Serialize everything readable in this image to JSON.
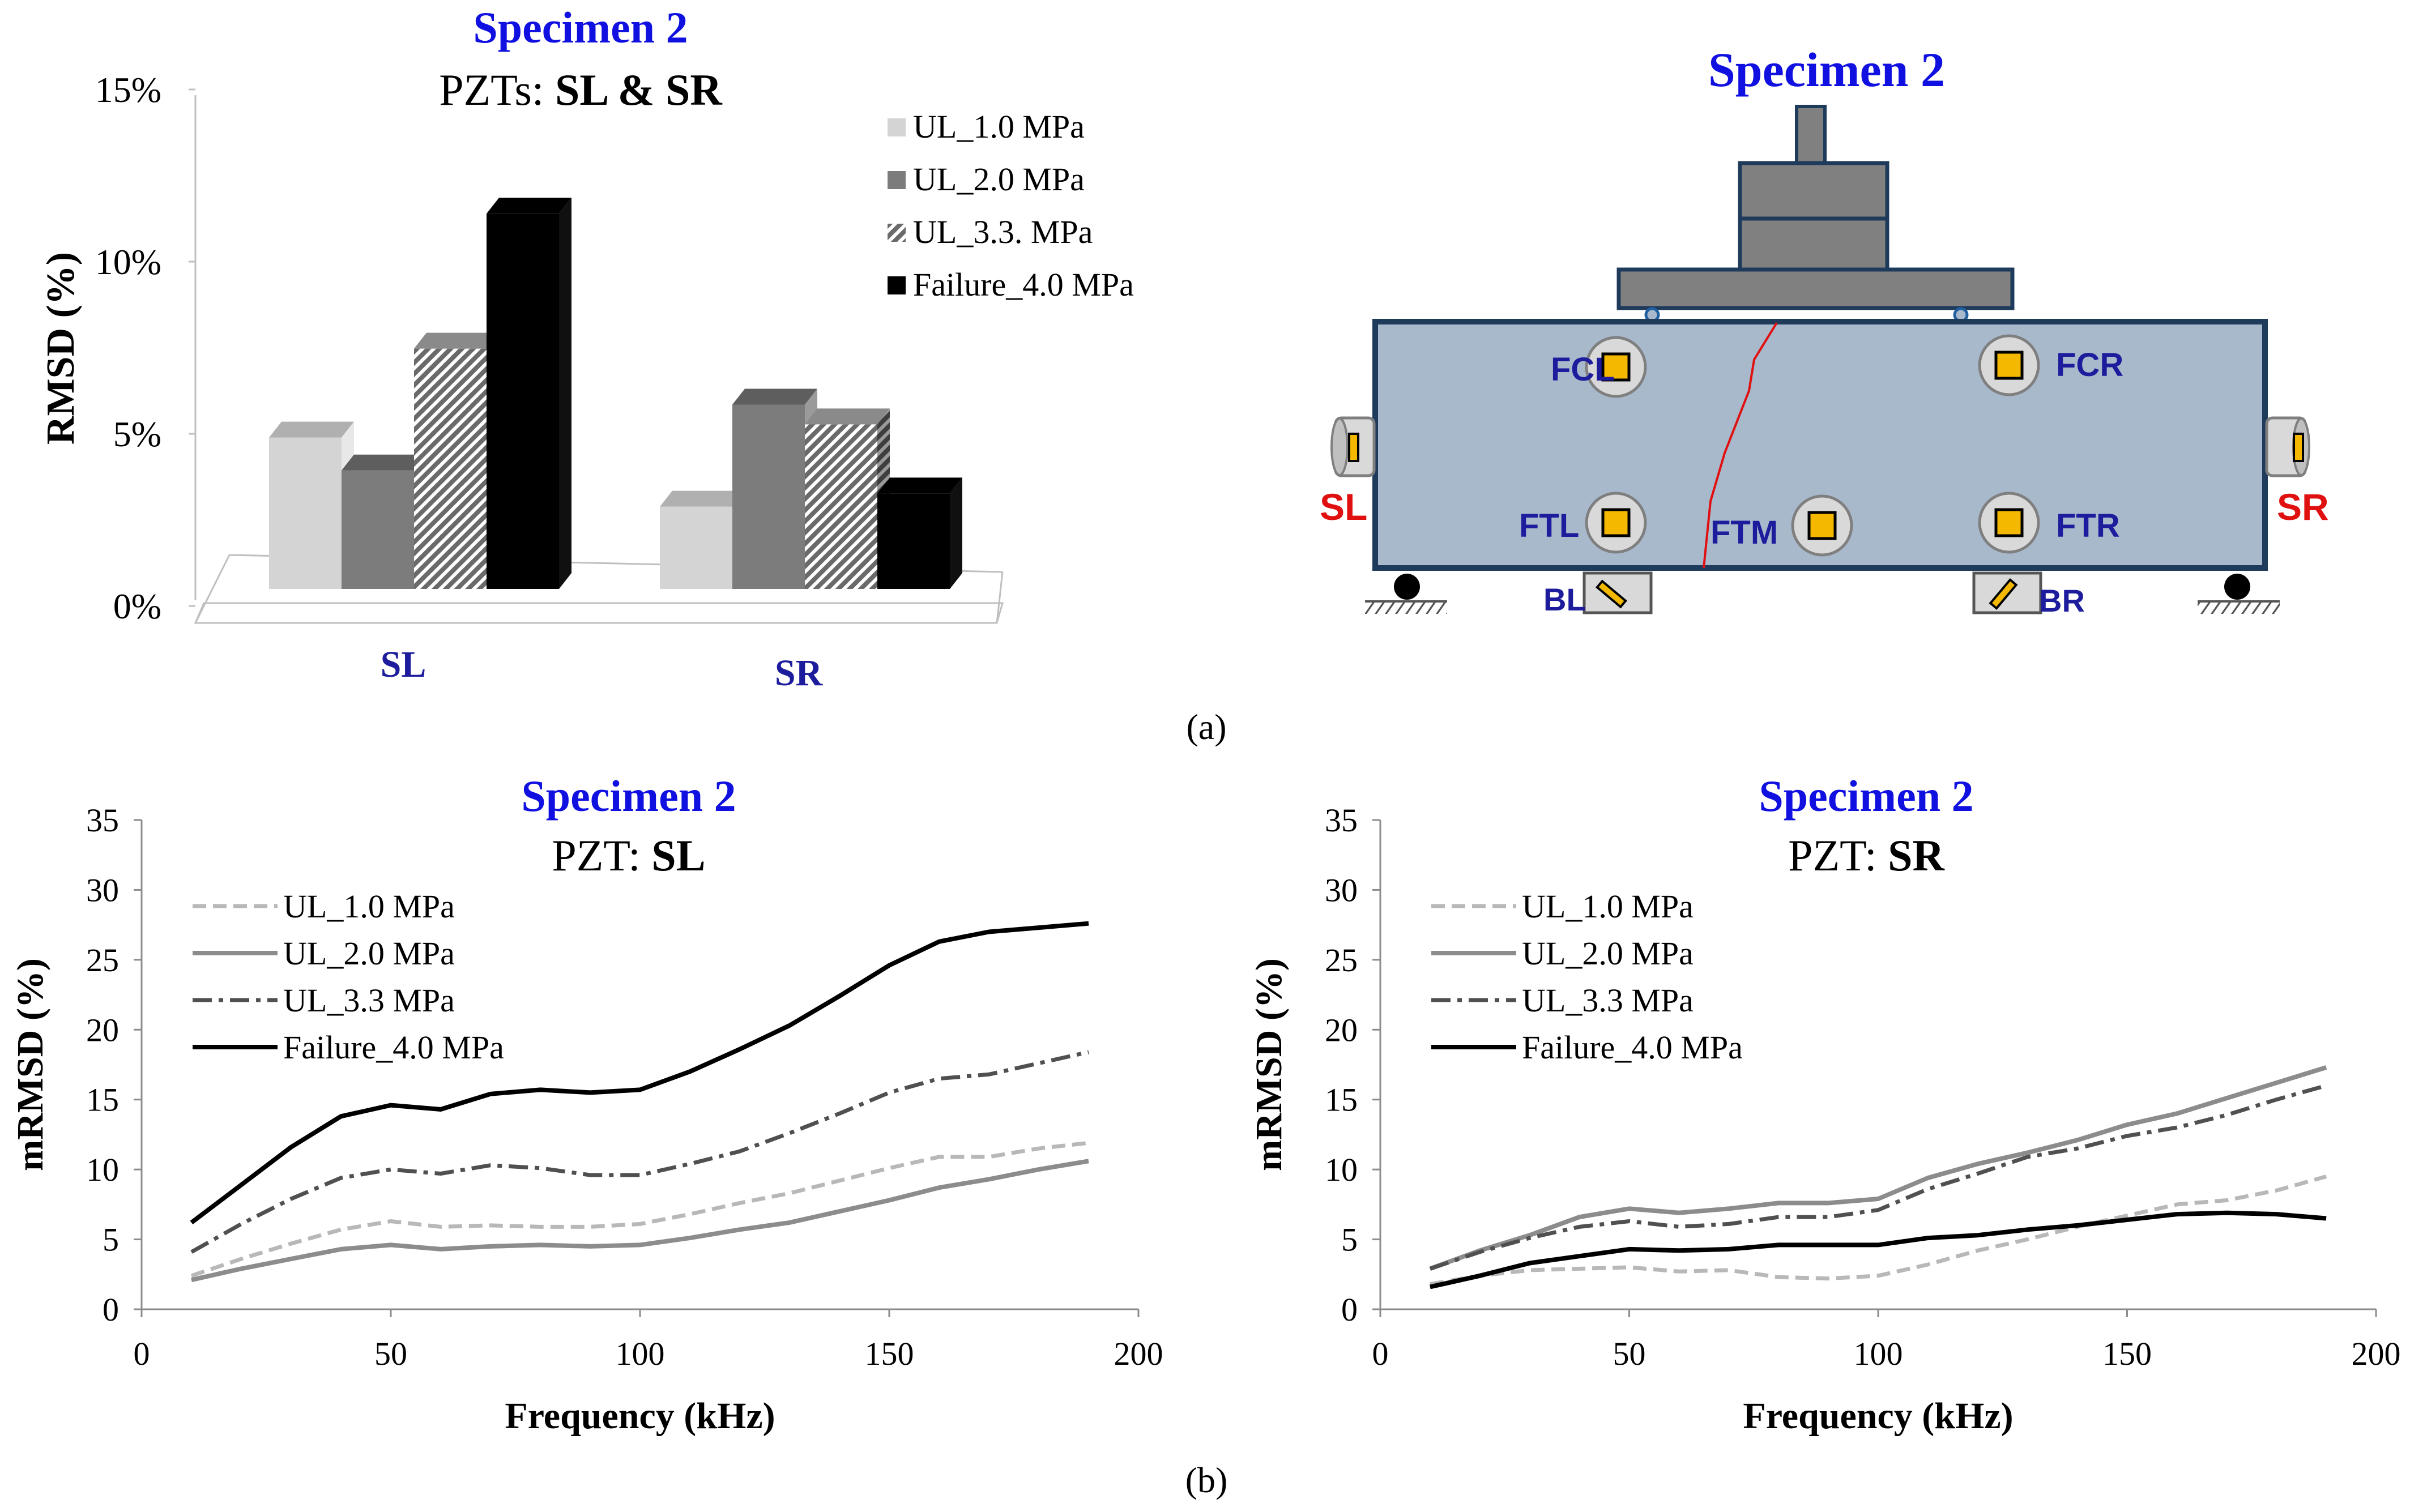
{
  "caption_a": "(a)",
  "caption_b": "(b)",
  "colors": {
    "title_blue": "#1010e0",
    "label_navy": "#1c1c9c",
    "red": "#e01010",
    "beam_fill": "#a9b9cc",
    "beam_stroke": "#1f3b5c",
    "loader_fill": "#808080",
    "pzt_fill": "#f5b800"
  },
  "chart_data": [
    {
      "type": "bar",
      "title": "Specimen 2",
      "subtitle_prefix": "PZTs: ",
      "subtitle_bold": "SL & SR",
      "ylabel": "RMSD (%)",
      "ylim": [
        0,
        15
      ],
      "yticks": [
        "0%",
        "5%",
        "10%",
        "15%"
      ],
      "categories": [
        "SL",
        "SR"
      ],
      "series": [
        {
          "name": "UL_1.0 MPa",
          "values": [
            4.6,
            2.5
          ],
          "color": "#d4d4d4"
        },
        {
          "name": "UL_2.0 MPa",
          "values": [
            3.6,
            5.6
          ],
          "color": "#7c7c7c"
        },
        {
          "name": "UL_3.3. MPa",
          "values": [
            7.3,
            5.0
          ],
          "color": "#b0b0b0"
        },
        {
          "name": "Failure_4.0 MPa",
          "values": [
            11.4,
            2.9
          ],
          "color": "#000000"
        }
      ]
    },
    {
      "type": "line",
      "title": "Specimen 2",
      "subtitle_prefix": "PZT: ",
      "subtitle_bold": "SL",
      "xlabel": "Frequency (kHz)",
      "ylabel": "mRMSD (%)",
      "xlim": [
        0,
        200
      ],
      "ylim": [
        0,
        35
      ],
      "xticks": [
        "0",
        "50",
        "100",
        "150",
        "200"
      ],
      "yticks": [
        "0",
        "5",
        "10",
        "15",
        "20",
        "25",
        "30",
        "35"
      ],
      "x": [
        10,
        20,
        30,
        40,
        50,
        60,
        70,
        80,
        90,
        100,
        110,
        120,
        130,
        140,
        150,
        160,
        170,
        180,
        190
      ],
      "series": [
        {
          "name": "UL_1.0 MPa",
          "values": [
            2.4,
            3.6,
            4.7,
            5.7,
            6.3,
            5.9,
            6.0,
            5.9,
            5.9,
            6.1,
            6.8,
            7.6,
            8.3,
            9.2,
            10.1,
            10.9,
            10.9,
            11.5,
            11.9
          ]
        },
        {
          "name": "UL_2.0 MPa",
          "values": [
            2.1,
            2.9,
            3.6,
            4.3,
            4.6,
            4.3,
            4.5,
            4.6,
            4.5,
            4.6,
            5.1,
            5.7,
            6.2,
            7.0,
            7.8,
            8.7,
            9.3,
            10.0,
            10.6
          ]
        },
        {
          "name": "UL_3.3 MPa",
          "values": [
            4.1,
            6.1,
            7.9,
            9.4,
            10.0,
            9.7,
            10.3,
            10.1,
            9.6,
            9.6,
            10.4,
            11.3,
            12.6,
            14.0,
            15.5,
            16.5,
            16.8,
            17.6,
            18.4
          ]
        },
        {
          "name": "Failure_4.0 MPa",
          "values": [
            6.2,
            8.9,
            11.6,
            13.8,
            14.6,
            14.3,
            15.4,
            15.7,
            15.5,
            15.7,
            17.0,
            18.6,
            20.3,
            22.4,
            24.6,
            26.3,
            27.0,
            27.3,
            27.6
          ]
        }
      ]
    },
    {
      "type": "line",
      "title": "Specimen 2",
      "subtitle_prefix": "PZT: ",
      "subtitle_bold": "SR",
      "xlabel": "Frequency (kHz)",
      "ylabel": "mRMSD (%)",
      "xlim": [
        0,
        200
      ],
      "ylim": [
        0,
        35
      ],
      "xticks": [
        "0",
        "50",
        "100",
        "150",
        "200"
      ],
      "yticks": [
        "0",
        "5",
        "10",
        "15",
        "20",
        "25",
        "30",
        "35"
      ],
      "x": [
        10,
        20,
        30,
        40,
        50,
        60,
        70,
        80,
        90,
        100,
        110,
        120,
        130,
        140,
        150,
        160,
        170,
        180,
        190
      ],
      "series": [
        {
          "name": "UL_1.0 MPa",
          "values": [
            1.8,
            2.4,
            2.8,
            2.9,
            3.0,
            2.7,
            2.8,
            2.3,
            2.2,
            2.4,
            3.2,
            4.2,
            5.0,
            5.9,
            6.7,
            7.5,
            7.8,
            8.5,
            9.5
          ]
        },
        {
          "name": "UL_2.0 MPa",
          "values": [
            2.9,
            4.2,
            5.3,
            6.6,
            7.2,
            6.9,
            7.2,
            7.6,
            7.6,
            7.9,
            9.4,
            10.4,
            11.2,
            12.1,
            13.2,
            14.0,
            15.1,
            16.2,
            17.3
          ]
        },
        {
          "name": "UL_3.3 MPa",
          "values": [
            2.9,
            4.1,
            5.1,
            5.9,
            6.3,
            5.9,
            6.1,
            6.6,
            6.6,
            7.1,
            8.6,
            9.7,
            10.9,
            11.5,
            12.4,
            13.0,
            13.9,
            15.0,
            16.0
          ]
        },
        {
          "name": "Failure_4.0 MPa",
          "values": [
            1.6,
            2.4,
            3.3,
            3.8,
            4.3,
            4.2,
            4.3,
            4.6,
            4.6,
            4.6,
            5.1,
            5.3,
            5.7,
            6.0,
            6.4,
            6.8,
            6.9,
            6.8,
            6.5
          ]
        }
      ]
    }
  ],
  "diagram": {
    "title": "Specimen 2",
    "sensors": {
      "FCL": "FCL",
      "FCR": "FCR",
      "FTL": "FTL",
      "FTM": "FTM",
      "FTR": "FTR",
      "SL": "SL",
      "SR": "SR",
      "BL": "BL",
      "BR": "BR"
    }
  }
}
